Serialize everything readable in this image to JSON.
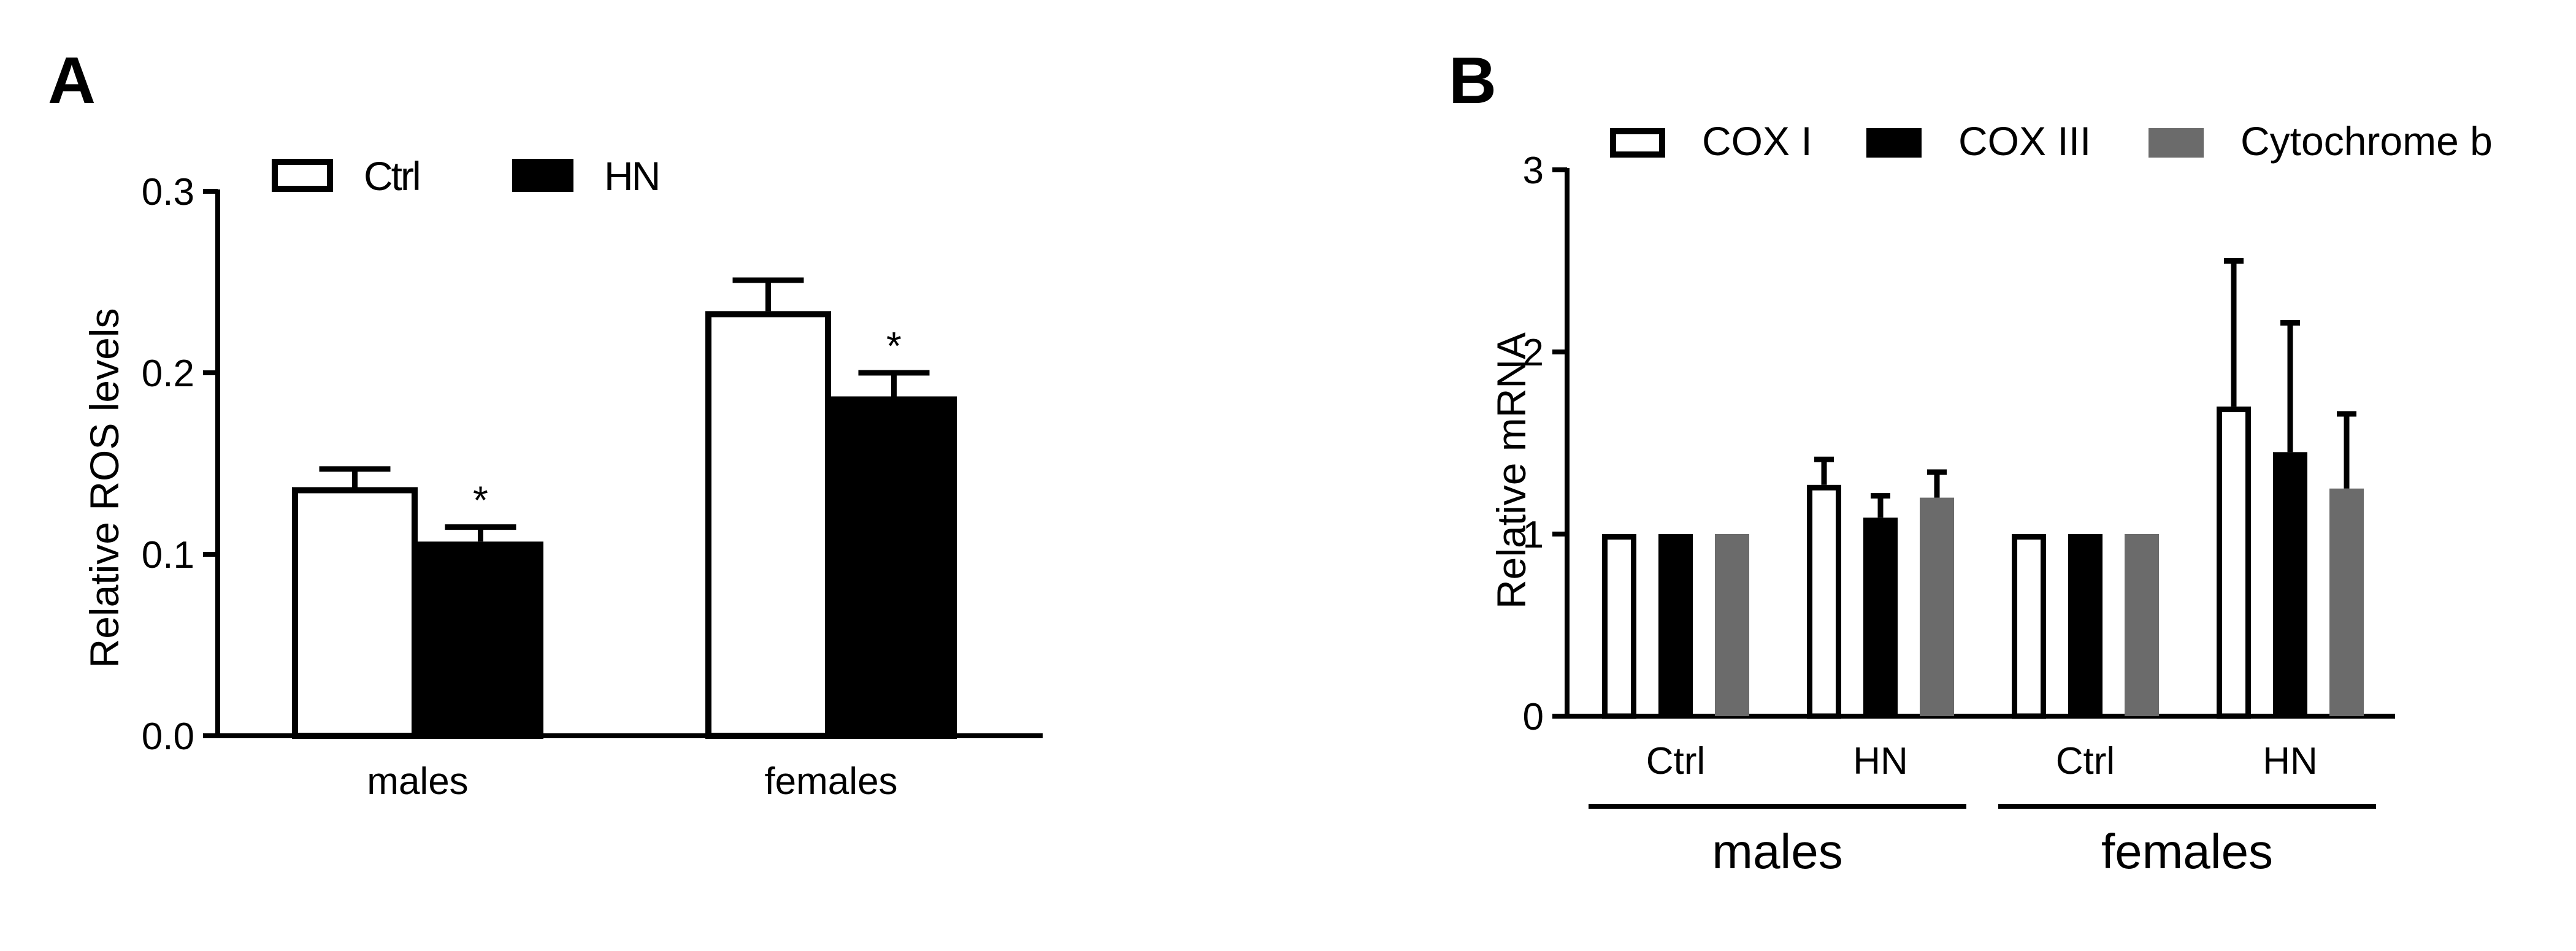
{
  "panels": {
    "a": {
      "label": "A"
    },
    "b": {
      "label": "B"
    }
  },
  "chart_data": [
    {
      "panel": "A",
      "type": "bar",
      "ylabel": "Relative ROS levels",
      "ylim": [
        0,
        0.3
      ],
      "yticks": [
        "0.0",
        "0.1",
        "0.2",
        "0.3"
      ],
      "categories": [
        "males",
        "females"
      ],
      "series": [
        {
          "name": "Ctrl",
          "fill": "#ffffff",
          "stroke": "#000000",
          "values": [
            0.137,
            0.234
          ],
          "errors": [
            0.01,
            0.017
          ],
          "sig": [
            "",
            ""
          ]
        },
        {
          "name": "HN",
          "fill": "#000000",
          "stroke": "#000000",
          "values": [
            0.107,
            0.187
          ],
          "errors": [
            0.008,
            0.013
          ],
          "sig": [
            "*",
            "*"
          ]
        }
      ],
      "legend_position": "top"
    },
    {
      "panel": "B",
      "type": "bar",
      "ylabel": "Relative mRNA",
      "ylim": [
        0,
        3
      ],
      "yticks": [
        "0",
        "1",
        "2",
        "3"
      ],
      "categories": [
        "Ctrl",
        "HN",
        "Ctrl",
        "HN"
      ],
      "groups": [
        {
          "label": "males",
          "span": [
            0,
            1
          ]
        },
        {
          "label": "females",
          "span": [
            2,
            3
          ]
        }
      ],
      "series": [
        {
          "name": "COX I",
          "fill": "#ffffff",
          "stroke": "#000000",
          "values": [
            1.0,
            1.27,
            1.0,
            1.7
          ],
          "errors": [
            0,
            0.14,
            0,
            0.8
          ]
        },
        {
          "name": "COX III",
          "fill": "#000000",
          "stroke": "#000000",
          "values": [
            1.0,
            1.09,
            1.0,
            1.45
          ],
          "errors": [
            0,
            0.12,
            0,
            0.71
          ]
        },
        {
          "name": "Cytochrome b",
          "fill": "#6b6b6b",
          "stroke": "#6b6b6b",
          "values": [
            1.0,
            1.2,
            1.0,
            1.25
          ],
          "errors": [
            0,
            0.14,
            0,
            0.41
          ]
        }
      ],
      "legend_position": "top"
    }
  ]
}
